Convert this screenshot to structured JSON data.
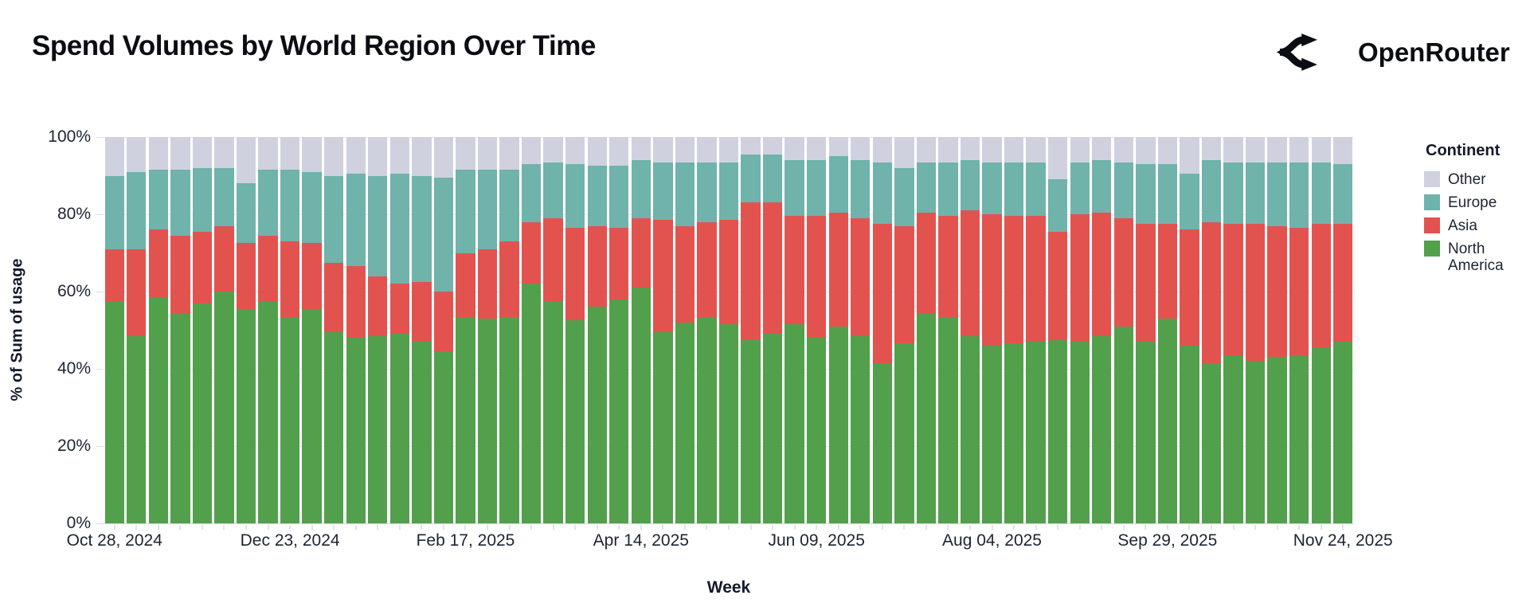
{
  "header": {
    "title": "Spend Volumes by World Region Over Time",
    "brand": "OpenRouter"
  },
  "chart": {
    "y_axis": {
      "title": "% of Sum of usage",
      "ticks": [
        {
          "label": "100%",
          "value": 100
        },
        {
          "label": "80%",
          "value": 80
        },
        {
          "label": "60%",
          "value": 60
        },
        {
          "label": "40%",
          "value": 40
        },
        {
          "label": "20%",
          "value": 20
        },
        {
          "label": "0%",
          "value": 0
        }
      ]
    },
    "x_axis": {
      "title": "Week",
      "tick_labels": [
        "Oct 28, 2024",
        "Dec 23, 2024",
        "Feb 17, 2025",
        "Apr 14, 2025",
        "Jun 09, 2025",
        "Aug 04, 2025",
        "Sep 29, 2025",
        "Nov 24, 2025"
      ]
    },
    "legend": {
      "title": "Continent",
      "items": [
        {
          "label": "Other",
          "color": "#cfd2de"
        },
        {
          "label": "Europe",
          "color": "#6fb3ab"
        },
        {
          "label": "Asia",
          "color": "#e25350"
        },
        {
          "label": "North America",
          "color": "#52a04b"
        }
      ]
    }
  },
  "chart_data": {
    "type": "bar",
    "stacked": true,
    "normalized_percent": true,
    "title": "Spend Volumes by World Region Over Time",
    "xlabel": "Week",
    "ylabel": "% of Sum of usage",
    "ylim": [
      0,
      100
    ],
    "grid": "horizontal-20pct",
    "legend_position": "right",
    "x": [
      "2024-10-28",
      "2024-11-04",
      "2024-11-11",
      "2024-11-18",
      "2024-11-25",
      "2024-12-02",
      "2024-12-09",
      "2024-12-16",
      "2024-12-23",
      "2024-12-30",
      "2025-01-06",
      "2025-01-13",
      "2025-01-20",
      "2025-01-27",
      "2025-02-03",
      "2025-02-10",
      "2025-02-17",
      "2025-02-24",
      "2025-03-03",
      "2025-03-10",
      "2025-03-17",
      "2025-03-24",
      "2025-03-31",
      "2025-04-07",
      "2025-04-14",
      "2025-04-21",
      "2025-04-28",
      "2025-05-05",
      "2025-05-12",
      "2025-05-19",
      "2025-05-26",
      "2025-06-02",
      "2025-06-09",
      "2025-06-16",
      "2025-06-23",
      "2025-06-30",
      "2025-07-07",
      "2025-07-14",
      "2025-07-21",
      "2025-07-28",
      "2025-08-04",
      "2025-08-11",
      "2025-08-18",
      "2025-08-25",
      "2025-09-01",
      "2025-09-08",
      "2025-09-15",
      "2025-09-22",
      "2025-09-29",
      "2025-10-06",
      "2025-10-13",
      "2025-10-20",
      "2025-10-27",
      "2025-11-03",
      "2025-11-10",
      "2025-11-17",
      "2025-11-24"
    ],
    "x_tick_indices": [
      0,
      8,
      16,
      24,
      32,
      40,
      48,
      56
    ],
    "series": [
      {
        "name": "North America",
        "color": "#52a04b",
        "values": [
          57.5,
          48.5,
          58.5,
          54.5,
          57,
          60,
          55.5,
          57.5,
          53.5,
          55.5,
          49.5,
          48,
          48.5,
          49,
          47,
          44.5,
          53.5,
          53,
          53.5,
          62,
          57.5,
          52.5,
          56,
          58,
          61,
          49.5,
          52,
          53.5,
          51.5,
          47.5,
          49,
          51.5,
          48,
          51,
          48.5,
          41.5,
          46.5,
          54.5,
          53.5,
          48.5,
          46,
          46.5,
          47,
          47.5,
          47,
          48.5,
          51,
          47,
          53,
          46,
          41.5,
          43.5,
          42,
          43,
          43.5,
          45.5,
          47
        ]
      },
      {
        "name": "Asia",
        "color": "#e25350",
        "values": [
          13.5,
          22.5,
          17.5,
          20,
          18.5,
          17,
          17,
          17,
          19.5,
          17,
          18,
          18.5,
          15.5,
          13,
          15.5,
          15.5,
          16.5,
          18,
          19.5,
          16,
          21.5,
          24,
          21,
          18.5,
          18,
          29,
          25,
          24.5,
          27,
          35.5,
          34,
          28,
          31.5,
          29.5,
          30.5,
          36,
          30.5,
          26,
          26,
          32.5,
          34,
          33,
          32.5,
          28,
          33,
          32,
          28,
          30.5,
          24.5,
          30,
          36.5,
          34,
          35.5,
          34,
          33,
          32,
          30.5
        ]
      },
      {
        "name": "Europe",
        "color": "#6fb3ab",
        "values": [
          19,
          20,
          15.5,
          17,
          16.5,
          15,
          15.5,
          17,
          18.5,
          18.5,
          22.5,
          24,
          26,
          28.5,
          27.5,
          29.5,
          21.5,
          20.5,
          18.5,
          15,
          14.5,
          16.5,
          15.5,
          16,
          15,
          15,
          16.5,
          15.5,
          15,
          12.5,
          12.5,
          14.5,
          14.5,
          14.5,
          15,
          16,
          15,
          13,
          14,
          13,
          13.5,
          14,
          14,
          13.5,
          13.5,
          13.5,
          14.5,
          15.5,
          15.5,
          14.5,
          16,
          16,
          16,
          16.5,
          17,
          16,
          15.5
        ]
      },
      {
        "name": "Other",
        "color": "#cfd2de",
        "values": [
          10,
          9,
          8.5,
          8.5,
          8,
          8,
          12,
          8.5,
          8.5,
          9,
          10,
          9.5,
          10,
          9.5,
          10,
          10.5,
          8.5,
          8.5,
          8.5,
          7,
          6.5,
          7,
          7.5,
          7.5,
          6,
          6.5,
          6.5,
          6.5,
          6.5,
          4.5,
          4.5,
          6,
          6,
          5,
          6,
          6.5,
          8,
          6.5,
          6.5,
          6,
          6.5,
          6.5,
          6.5,
          11,
          6.5,
          6,
          6.5,
          7,
          7,
          9.5,
          6,
          6.5,
          6.5,
          6.5,
          6.5,
          6.5,
          7
        ]
      }
    ]
  }
}
